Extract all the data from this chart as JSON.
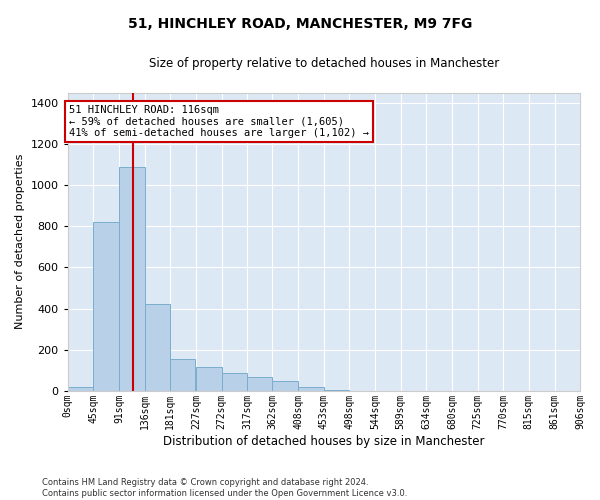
{
  "title_line1": "51, HINCHLEY ROAD, MANCHESTER, M9 7FG",
  "title_line2": "Size of property relative to detached houses in Manchester",
  "xlabel": "Distribution of detached houses by size in Manchester",
  "ylabel": "Number of detached properties",
  "bar_color": "#b8d0e8",
  "bar_edge_color": "#7aaecc",
  "background_color": "#dde8f5",
  "grid_color": "#ffffff",
  "annotation_box_color": "#cc0000",
  "property_line_color": "#cc0000",
  "property_size": 116,
  "annotation_text": "51 HINCHLEY ROAD: 116sqm\n← 59% of detached houses are smaller (1,605)\n41% of semi-detached houses are larger (1,102) →",
  "footer_text": "Contains HM Land Registry data © Crown copyright and database right 2024.\nContains public sector information licensed under the Open Government Licence v3.0.",
  "bin_edges": [
    0,
    45,
    91,
    136,
    181,
    227,
    272,
    317,
    362,
    408,
    453,
    498,
    544,
    589,
    634,
    680,
    725,
    770,
    815,
    861,
    906
  ],
  "bin_labels": [
    "0sqm",
    "45sqm",
    "91sqm",
    "136sqm",
    "181sqm",
    "227sqm",
    "272sqm",
    "317sqm",
    "362sqm",
    "408sqm",
    "453sqm",
    "498sqm",
    "544sqm",
    "589sqm",
    "634sqm",
    "680sqm",
    "725sqm",
    "770sqm",
    "815sqm",
    "861sqm",
    "906sqm"
  ],
  "bar_heights": [
    20,
    820,
    1090,
    420,
    155,
    115,
    85,
    70,
    50,
    20,
    5,
    2,
    1,
    0,
    0,
    0,
    0,
    0,
    0,
    0
  ],
  "ylim": [
    0,
    1450
  ],
  "yticks": [
    0,
    200,
    400,
    600,
    800,
    1000,
    1200,
    1400
  ]
}
